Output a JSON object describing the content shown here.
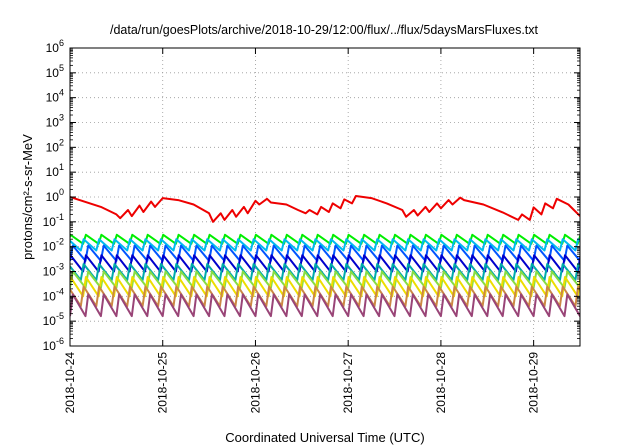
{
  "chart_data": {
    "type": "line",
    "title": "/data/run/goesPlots/archive/2018-10-29/12:00/flux/../flux/5daysMarsFluxes.txt",
    "xlabel": "Coordinated Universal Time (UTC)",
    "ylabel": "protons/cm²-s-sr-MeV",
    "yscale": "log",
    "ylim": [
      1e-06,
      1000000.0
    ],
    "xlim": [
      "2018-10-24T00:00",
      "2018-10-29T12:00"
    ],
    "x_ticks": [
      "2018-10-24",
      "2018-10-25",
      "2018-10-26",
      "2018-10-27",
      "2018-10-28",
      "2018-10-29"
    ],
    "y_ticks": [
      "10^-6",
      "10^-5",
      "10^-4",
      "10^-3",
      "10^-2",
      "10^-1",
      "10^0",
      "10^1",
      "10^2",
      "10^3",
      "10^4",
      "10^5",
      "10^6"
    ],
    "grid": true,
    "series": [
      {
        "color": "#ee0000",
        "x": [
          "2018-10-24T00:00",
          "2018-10-24T08:00",
          "2018-10-24T12:00",
          "2018-10-24T13:00",
          "2018-10-24T15:00",
          "2018-10-24T16:00",
          "2018-10-24T18:00",
          "2018-10-24T19:00",
          "2018-10-24T21:00",
          "2018-10-24T22:00",
          "2018-10-25T00:00",
          "2018-10-25T04:00",
          "2018-10-25T08:00",
          "2018-10-25T12:00",
          "2018-10-25T13:00",
          "2018-10-25T15:00",
          "2018-10-25T16:00",
          "2018-10-25T18:00",
          "2018-10-25T19:00",
          "2018-10-25T21:00",
          "2018-10-25T22:00",
          "2018-10-26T00:00",
          "2018-10-26T01:00",
          "2018-10-26T03:00",
          "2018-10-26T04:00",
          "2018-10-26T08:00",
          "2018-10-26T11:00",
          "2018-10-26T13:00",
          "2018-10-26T14:00",
          "2018-10-26T16:00",
          "2018-10-26T17:00",
          "2018-10-26T19:00",
          "2018-10-26T20:00",
          "2018-10-26T22:00",
          "2018-10-26T23:00",
          "2018-10-27T01:00",
          "2018-10-27T02:00",
          "2018-10-27T06:00",
          "2018-10-27T10:00",
          "2018-10-27T14:00",
          "2018-10-27T15:00",
          "2018-10-27T17:00",
          "2018-10-27T18:00",
          "2018-10-27T20:00",
          "2018-10-27T21:00",
          "2018-10-27T23:00",
          "2018-10-28T00:00",
          "2018-10-28T02:00",
          "2018-10-28T03:00",
          "2018-10-28T05:00",
          "2018-10-28T06:00",
          "2018-10-28T11:00",
          "2018-10-28T16:00",
          "2018-10-28T20:00",
          "2018-10-28T21:00",
          "2018-10-28T23:00",
          "2018-10-29T00:00",
          "2018-10-29T02:00",
          "2018-10-29T03:00",
          "2018-10-29T05:00",
          "2018-10-29T06:00",
          "2018-10-29T09:00",
          "2018-10-29T12:00"
        ],
        "y": [
          1.0,
          0.4,
          0.2,
          0.14,
          0.3,
          0.17,
          0.45,
          0.25,
          0.65,
          0.4,
          0.9,
          0.75,
          0.5,
          0.22,
          0.1,
          0.22,
          0.12,
          0.3,
          0.16,
          0.4,
          0.22,
          0.7,
          0.5,
          0.85,
          0.6,
          0.5,
          0.3,
          0.22,
          0.3,
          0.2,
          0.4,
          0.25,
          0.55,
          0.35,
          0.8,
          0.55,
          1.1,
          0.9,
          0.55,
          0.3,
          0.16,
          0.3,
          0.18,
          0.4,
          0.25,
          0.55,
          0.35,
          0.75,
          0.5,
          0.95,
          0.75,
          0.5,
          0.24,
          0.12,
          0.2,
          0.12,
          0.38,
          0.2,
          0.55,
          0.35,
          0.85,
          0.5,
          0.17
        ]
      },
      {
        "color": "#00ee00",
        "period_hours": 4,
        "peak": 0.03,
        "trough": 0.013
      },
      {
        "color": "#00bbee",
        "period_hours": 4,
        "peak": 0.02,
        "trough": 0.007
      },
      {
        "color": "#0055ff",
        "period_hours": 4,
        "peak": 0.011,
        "trough": 0.0027
      },
      {
        "color": "#0000cc",
        "period_hours": 4,
        "peak": 0.0045,
        "trough": 0.001
      },
      {
        "color": "#00aaaa",
        "period_hours": 4,
        "peak": 0.002,
        "trough": 0.00045
      },
      {
        "color": "#88dd44",
        "period_hours": 4,
        "peak": 0.001,
        "trough": 0.00022
      },
      {
        "color": "#eedd00",
        "period_hours": 4,
        "peak": 0.0006,
        "trough": 0.0001
      },
      {
        "color": "#cc8844",
        "period_hours": 4,
        "peak": 0.00025,
        "trough": 4e-05
      },
      {
        "color": "#994477",
        "period_hours": 4,
        "peak": 0.00012,
        "trough": 1.6e-05
      }
    ]
  }
}
